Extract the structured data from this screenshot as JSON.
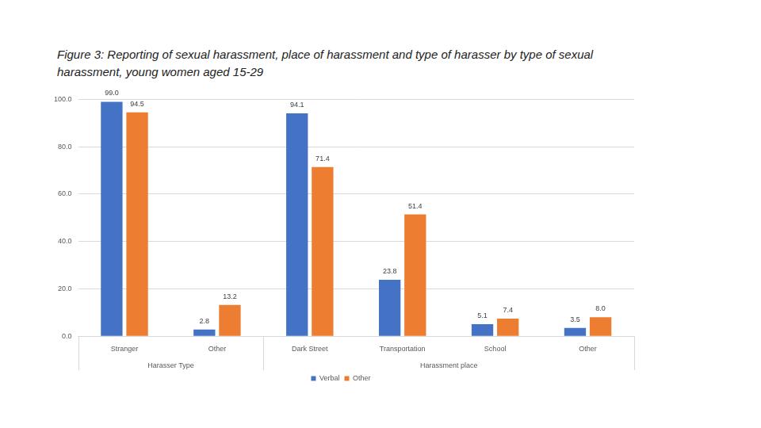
{
  "chart_data": {
    "type": "bar",
    "title": "Figure 3: Reporting of sexual harassment, place of harassment and type of harasser by type of sexual harassment, young women aged 15-29",
    "categories": [
      "Stranger",
      "Other",
      "Dark Street",
      "Transportation",
      "School",
      "Other"
    ],
    "category_groups": [
      {
        "label": "Harasser Type",
        "categories": [
          "Stranger",
          "Other"
        ]
      },
      {
        "label": "Harassment place",
        "categories": [
          "Dark Street",
          "Transportation",
          "School",
          "Other"
        ]
      }
    ],
    "series": [
      {
        "name": "Verbal",
        "color": "#4472c4",
        "values": [
          99.0,
          2.8,
          94.1,
          23.8,
          5.1,
          3.5
        ],
        "value_labels": [
          "99.0",
          "2.8",
          "94.1",
          "23.8",
          "5.1",
          "3.5"
        ]
      },
      {
        "name": "Other",
        "color": "#ed7d31",
        "values": [
          94.5,
          13.2,
          71.4,
          51.4,
          7.4,
          8.0
        ],
        "value_labels": [
          "94.5",
          "13.2",
          "71.4",
          "51.4",
          "7.4",
          "8.0"
        ]
      }
    ],
    "ylim": [
      0,
      100
    ],
    "yticks": [
      {
        "value": 0,
        "label": "0.0"
      },
      {
        "value": 20,
        "label": "20.0"
      },
      {
        "value": 40,
        "label": "40.0"
      },
      {
        "value": 60,
        "label": "60.0"
      },
      {
        "value": 80,
        "label": "80.0"
      },
      {
        "value": 100,
        "label": "100.0"
      }
    ],
    "grid": true,
    "legend": "bottom",
    "data_labels": true
  }
}
